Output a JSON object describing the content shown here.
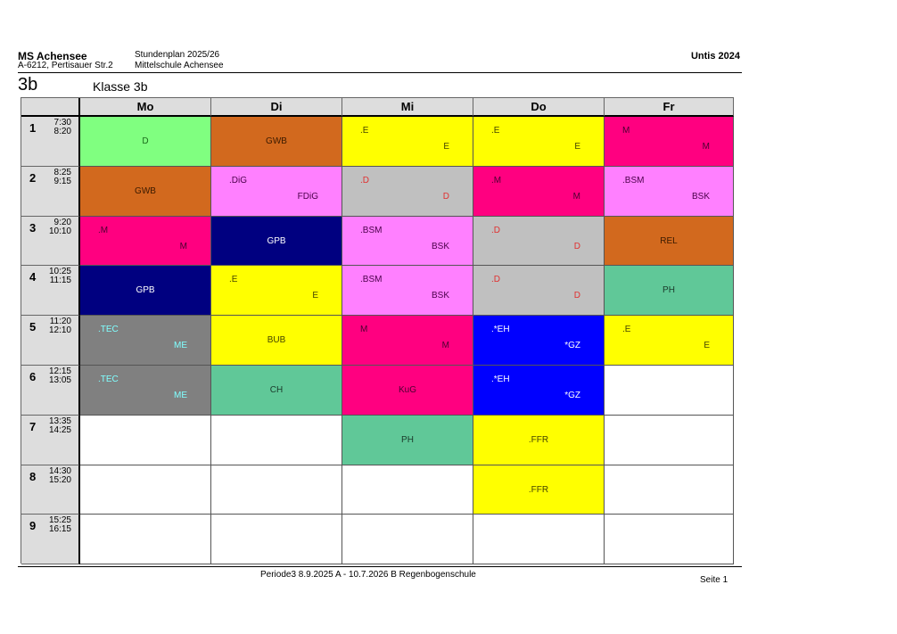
{
  "header": {
    "school": "MS Achensee",
    "address": "A-6212, Pertisauer Str.2",
    "plan": "Stundenplan 2025/26",
    "school_type": "Mittelschule Achensee",
    "software": "Untis 2024",
    "class_short": "3b",
    "class_title": "Klasse 3b"
  },
  "days": [
    "Mo",
    "Di",
    "Mi",
    "Do",
    "Fr"
  ],
  "periods": [
    {
      "n": "1",
      "start": "7:30",
      "end": "8:20"
    },
    {
      "n": "2",
      "start": "8:25",
      "end": "9:15"
    },
    {
      "n": "3",
      "start": "9:20",
      "end": "10:10"
    },
    {
      "n": "4",
      "start": "10:25",
      "end": "11:15"
    },
    {
      "n": "5",
      "start": "11:20",
      "end": "12:10"
    },
    {
      "n": "6",
      "start": "12:15",
      "end": "13:05"
    },
    {
      "n": "7",
      "start": "13:35",
      "end": "14:25"
    },
    {
      "n": "8",
      "start": "14:30",
      "end": "15:20"
    },
    {
      "n": "9",
      "start": "15:25",
      "end": "16:15"
    }
  ],
  "lessons": [
    [
      {
        "c": "D",
        "bg": "#80ff80",
        "fg": "#1a6a1a"
      },
      {
        "c": "GWB",
        "bg": "#d2691e",
        "fg": "#3a1a00"
      },
      {
        "tl": ".E",
        "br": "E",
        "bg": "#ffff00",
        "fg": "#444400"
      },
      {
        "tl": ".E",
        "br": "E",
        "bg": "#ffff00",
        "fg": "#444400"
      },
      {
        "tl": "M",
        "br": "M",
        "bg": "#ff0080",
        "fg": "#4a0030"
      }
    ],
    [
      {
        "c": "GWB",
        "bg": "#d2691e",
        "fg": "#3a1a00"
      },
      {
        "tl": ".DiG",
        "br": "FDiG",
        "bg": "#ff80ff",
        "fg": "#4a004a"
      },
      {
        "tl": ".D",
        "br": "D",
        "bg": "#c0c0c0",
        "fg": "#e03030"
      },
      {
        "tl": ".M",
        "br": "M",
        "bg": "#ff0080",
        "fg": "#4a0030"
      },
      {
        "tl": ".BSM",
        "br": "BSK",
        "bg": "#ff80ff",
        "fg": "#4a004a"
      }
    ],
    [
      {
        "tl": ".M",
        "br": "M",
        "bg": "#ff0080",
        "fg": "#4a0030"
      },
      {
        "c": "GPB",
        "bg": "#000080",
        "fg": "#ffffff"
      },
      {
        "tl": ".BSM",
        "br": "BSK",
        "bg": "#ff80ff",
        "fg": "#4a004a"
      },
      {
        "tl": ".D",
        "br": "D",
        "bg": "#c0c0c0",
        "fg": "#e03030"
      },
      {
        "c": "REL",
        "bg": "#d2691e",
        "fg": "#3a1a00"
      }
    ],
    [
      {
        "c": "GPB",
        "bg": "#000080",
        "fg": "#ffffff"
      },
      {
        "tl": ".E",
        "br": "E",
        "bg": "#ffff00",
        "fg": "#444400"
      },
      {
        "tl": ".BSM",
        "br": "BSK",
        "bg": "#ff80ff",
        "fg": "#4a004a"
      },
      {
        "tl": ".D",
        "br": "D",
        "bg": "#c0c0c0",
        "fg": "#e03030"
      },
      {
        "c": "PH",
        "bg": "#60c898",
        "fg": "#1a3a2a"
      }
    ],
    [
      {
        "tl": ".TEC",
        "br": "ME",
        "bg": "#808080",
        "fg": "#80ffff"
      },
      {
        "c": "BUB",
        "bg": "#ffff00",
        "fg": "#444400"
      },
      {
        "tl": "M",
        "br": "M",
        "bg": "#ff0080",
        "fg": "#4a0030"
      },
      {
        "tl": ".*EH",
        "br": "*GZ",
        "bg": "#0000ff",
        "fg": "#ffffff"
      },
      {
        "tl": ".E",
        "br": "E",
        "bg": "#ffff00",
        "fg": "#444400"
      }
    ],
    [
      {
        "tl": ".TEC",
        "br": "ME",
        "bg": "#808080",
        "fg": "#80ffff"
      },
      {
        "c": "CH",
        "bg": "#60c898",
        "fg": "#1a3a2a"
      },
      {
        "c": "KuG",
        "bg": "#ff0080",
        "fg": "#4a0030"
      },
      {
        "tl": ".*EH",
        "br": "*GZ",
        "bg": "#0000ff",
        "fg": "#ffffff"
      },
      null
    ],
    [
      null,
      null,
      {
        "c": "PH",
        "bg": "#60c898",
        "fg": "#1a3a2a"
      },
      {
        "c": ".FFR",
        "bg": "#ffff00",
        "fg": "#444400"
      },
      null
    ],
    [
      null,
      null,
      null,
      {
        "c": ".FFR",
        "bg": "#ffff00",
        "fg": "#444400"
      },
      null
    ],
    [
      null,
      null,
      null,
      null,
      null
    ]
  ],
  "footer": {
    "period": "Periode3   8.9.2025 A - 10.7.2026 B   Regenbogenschule",
    "page": "Seite 1"
  }
}
